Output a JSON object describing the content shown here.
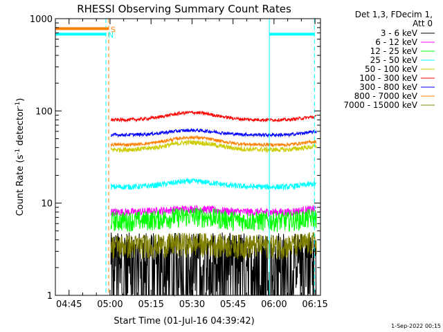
{
  "chart_data": {
    "type": "line",
    "title": "RHESSI Observing Summary Count Rates",
    "xlabel": "Start Time (01-Jul-16 04:39:42)",
    "ylabel_main": "Count Rate (s",
    "ylabel_sup1": "-1",
    "ylabel_mid": " detector",
    "ylabel_sup2": "-1",
    "ylabel_end": ")",
    "yscale": "log",
    "ylim": [
      1,
      1000
    ],
    "xlim_min": [
      40,
      137
    ],
    "x_ticks": [
      "04:45",
      "05:00",
      "05:15",
      "05:30",
      "05:45",
      "06:00",
      "06:15"
    ],
    "x_tick_min": [
      45,
      60,
      75,
      90,
      105,
      120,
      135
    ],
    "y_ticks": [
      "1",
      "10",
      "100",
      "1000"
    ],
    "y_tick_vals": [
      1,
      10,
      100,
      1000
    ],
    "legend_header": [
      "Det 1,3, FDecim 1,",
      "Att 0"
    ],
    "series": [
      {
        "name": "3 - 6 keV",
        "color": "#000000",
        "base": 2.0,
        "noise": 0.9,
        "hump": 0.0,
        "drops": true
      },
      {
        "name": "6 - 12 keV",
        "color": "#ff00ff",
        "base": 8.0,
        "noise": 0.1,
        "hump": 0.08
      },
      {
        "name": "12 - 25 keV",
        "color": "#00ff00",
        "base": 6.5,
        "noise": 0.25,
        "hump": 0.12
      },
      {
        "name": "25 - 50 keV",
        "color": "#00ffff",
        "base": 15.0,
        "noise": 0.07,
        "hump": 0.15
      },
      {
        "name": "50 - 100 keV",
        "color": "#cccc00",
        "base": 38.0,
        "noise": 0.06,
        "hump": 0.2
      },
      {
        "name": "100 - 300 keV",
        "color": "#ff0000",
        "base": 80.0,
        "noise": 0.04,
        "hump": 0.2
      },
      {
        "name": "300 - 800 keV",
        "color": "#0000ff",
        "base": 55.0,
        "noise": 0.04,
        "hump": 0.12
      },
      {
        "name": "800 - 7000 keV",
        "color": "#ff8000",
        "base": 43.0,
        "noise": 0.04,
        "hump": 0.2
      },
      {
        "name": "7000 - 15000 keV",
        "color": "#808000",
        "base": 3.5,
        "noise": 0.3,
        "hump": 0.05
      }
    ],
    "data_start_min": 60.3,
    "data_end_min": 135.5,
    "flags": [
      {
        "label": "S",
        "color": "#ff8000",
        "x_min": [
          40,
          59.5
        ],
        "level": 780
      },
      {
        "label": "N",
        "color": "#00ffff",
        "x_min": [
          40,
          58.5
        ],
        "level": 680
      }
    ],
    "night_boundaries": [
      {
        "x_min": 40,
        "style": "solid"
      },
      {
        "x_min": 58.5,
        "style": "dashed"
      },
      {
        "x_min": 118.3,
        "style": "solid"
      },
      {
        "x_min": 134.8,
        "style": "dashed"
      }
    ],
    "saa_boundary": {
      "x_min": 59.5,
      "color": "#ff8000"
    },
    "night_end_level_min": [
      118.3,
      134.8
    ],
    "night_end_level": 680,
    "timestamp": "1-Sep-2022 00:15"
  }
}
